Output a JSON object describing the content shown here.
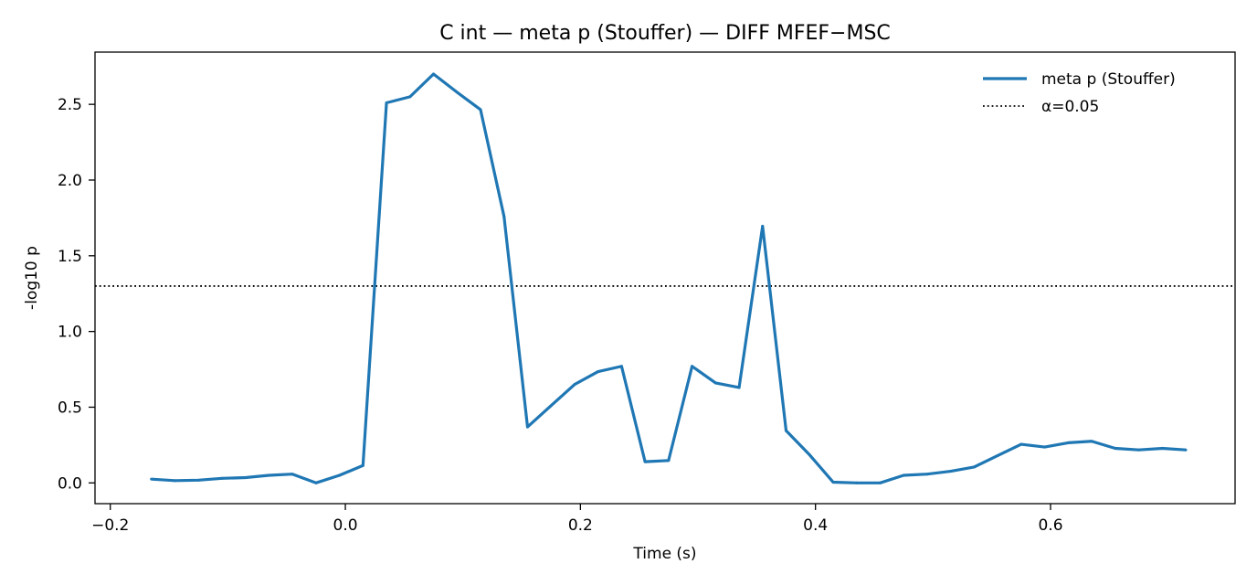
{
  "chart_data": {
    "type": "line",
    "title": "C int — meta p (Stouffer) — DIFF MFEF−MSC",
    "xlabel": "Time (s)",
    "ylabel": "-log10 p",
    "xlim": [
      -0.213,
      0.757
    ],
    "ylim": [
      -0.137,
      2.845
    ],
    "xticks": [
      -0.2,
      0.0,
      0.2,
      0.4,
      0.6
    ],
    "xtick_labels": [
      "−0.2",
      "0.0",
      "0.2",
      "0.4",
      "0.6"
    ],
    "yticks": [
      0.0,
      0.5,
      1.0,
      1.5,
      2.0,
      2.5
    ],
    "ytick_labels": [
      "0.0",
      "0.5",
      "1.0",
      "1.5",
      "2.0",
      "2.5"
    ],
    "grid": false,
    "legend_position": "top-right",
    "series": [
      {
        "name": "meta p (Stouffer)",
        "color": "#1f77b4",
        "style": "solid",
        "x": [
          -0.165,
          -0.145,
          -0.125,
          -0.105,
          -0.085,
          -0.065,
          -0.045,
          -0.025,
          -0.005,
          0.015,
          0.035,
          0.055,
          0.075,
          0.095,
          0.115,
          0.135,
          0.155,
          0.175,
          0.195,
          0.215,
          0.235,
          0.255,
          0.275,
          0.295,
          0.315,
          0.335,
          0.355,
          0.375,
          0.395,
          0.415,
          0.435,
          0.455,
          0.475,
          0.495,
          0.515,
          0.535,
          0.555,
          0.575,
          0.595,
          0.615,
          0.635,
          0.655,
          0.675,
          0.695,
          0.715
        ],
        "y": [
          0.025,
          0.015,
          0.018,
          0.03,
          0.035,
          0.05,
          0.058,
          0.0,
          0.05,
          0.115,
          2.51,
          2.55,
          2.7,
          2.58,
          2.465,
          1.76,
          0.37,
          0.51,
          0.65,
          0.735,
          0.77,
          0.14,
          0.148,
          0.77,
          0.66,
          0.63,
          1.695,
          0.345,
          0.185,
          0.005,
          0.0,
          0.0,
          0.05,
          0.058,
          0.077,
          0.105,
          0.18,
          0.255,
          0.237,
          0.265,
          0.275,
          0.228,
          0.218,
          0.228,
          0.218
        ]
      }
    ],
    "hlines": [
      {
        "name": "α=0.05",
        "y": 1.3,
        "color": "#000000",
        "style": "dotted"
      }
    ]
  }
}
